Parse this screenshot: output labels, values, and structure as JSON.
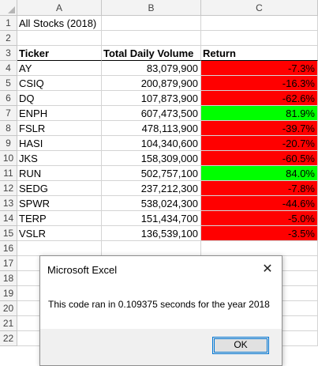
{
  "columns": [
    "A",
    "B",
    "C"
  ],
  "rows": [
    "1",
    "2",
    "3",
    "4",
    "5",
    "6",
    "7",
    "8",
    "9",
    "10",
    "11",
    "12",
    "13",
    "14",
    "15",
    "16",
    "17",
    "18",
    "19",
    "20",
    "21",
    "22"
  ],
  "title": "All Stocks (2018)",
  "headers": {
    "ticker": "Ticker",
    "volume": "Total Daily Volume",
    "return": "Return"
  },
  "stocks": [
    {
      "ticker": "AY",
      "volume": "83,079,900",
      "return": "-7.3%",
      "positive": false
    },
    {
      "ticker": "CSIQ",
      "volume": "200,879,900",
      "return": "-16.3%",
      "positive": false
    },
    {
      "ticker": "DQ",
      "volume": "107,873,900",
      "return": "-62.6%",
      "positive": false
    },
    {
      "ticker": "ENPH",
      "volume": "607,473,500",
      "return": "81.9%",
      "positive": true
    },
    {
      "ticker": "FSLR",
      "volume": "478,113,900",
      "return": "-39.7%",
      "positive": false
    },
    {
      "ticker": "HASI",
      "volume": "104,340,600",
      "return": "-20.7%",
      "positive": false
    },
    {
      "ticker": "JKS",
      "volume": "158,309,000",
      "return": "-60.5%",
      "positive": false
    },
    {
      "ticker": "RUN",
      "volume": "502,757,100",
      "return": "84.0%",
      "positive": true
    },
    {
      "ticker": "SEDG",
      "volume": "237,212,300",
      "return": "-7.8%",
      "positive": false
    },
    {
      "ticker": "SPWR",
      "volume": "538,024,300",
      "return": "-44.6%",
      "positive": false
    },
    {
      "ticker": "TERP",
      "volume": "151,434,700",
      "return": "-5.0%",
      "positive": false
    },
    {
      "ticker": "VSLR",
      "volume": "136,539,100",
      "return": "-3.5%",
      "positive": false
    }
  ],
  "colors": {
    "negative": "#ff0000",
    "positive": "#00ff00",
    "header_bg": "#f3f3f3"
  },
  "dialog": {
    "title": "Microsoft Excel",
    "message": "This code ran in 0.109375 seconds for the year 2018",
    "ok_label": "OK",
    "close_glyph": "✕"
  }
}
